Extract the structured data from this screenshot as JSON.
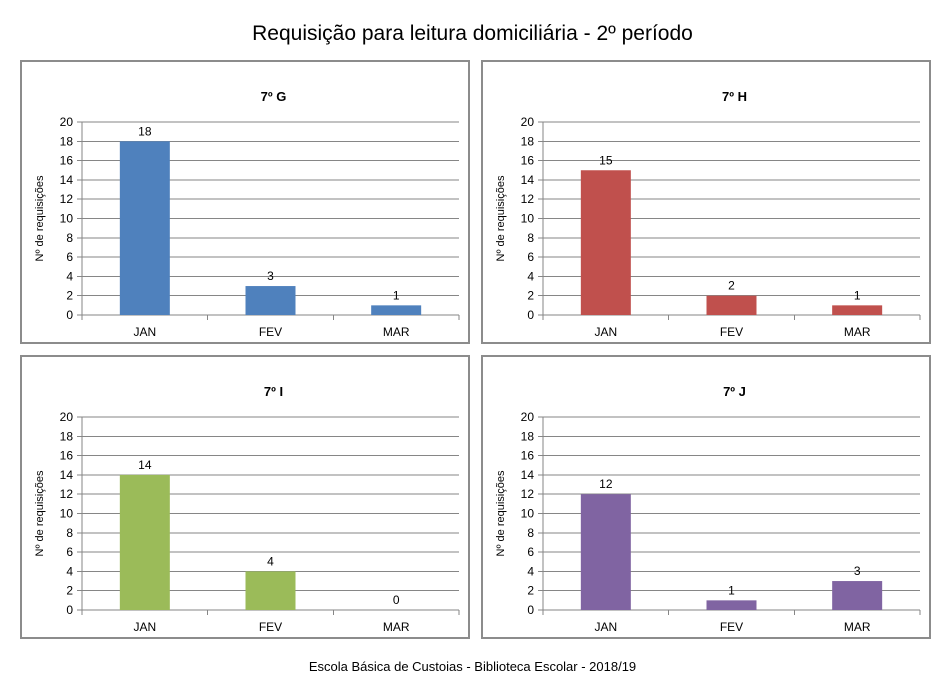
{
  "title": "Requisição para leitura domiciliária - 2º período",
  "footer": "Escola Básica de Custoias - Biblioteca Escolar  - 2018/19",
  "chart_data": [
    {
      "type": "bar",
      "title": "7º G",
      "categories": [
        "JAN",
        "FEV",
        "MAR"
      ],
      "values": [
        18,
        3,
        1
      ],
      "ylabel": "Nº de requisições",
      "xlabel": "",
      "ylim": [
        0,
        20
      ],
      "yticks": [
        0,
        2,
        4,
        6,
        8,
        10,
        12,
        14,
        16,
        18,
        20
      ],
      "color": "#4f81bd",
      "grid": true
    },
    {
      "type": "bar",
      "title": "7º H",
      "categories": [
        "JAN",
        "FEV",
        "MAR"
      ],
      "values": [
        15,
        2,
        1
      ],
      "ylabel": "Nº de requisições",
      "xlabel": "",
      "ylim": [
        0,
        20
      ],
      "yticks": [
        0,
        2,
        4,
        6,
        8,
        10,
        12,
        14,
        16,
        18,
        20
      ],
      "color": "#c0504d",
      "grid": true
    },
    {
      "type": "bar",
      "title": "7º I",
      "categories": [
        "JAN",
        "FEV",
        "MAR"
      ],
      "values": [
        14,
        4,
        0
      ],
      "ylabel": "Nº de requisições",
      "xlabel": "",
      "ylim": [
        0,
        20
      ],
      "yticks": [
        0,
        2,
        4,
        6,
        8,
        10,
        12,
        14,
        16,
        18,
        20
      ],
      "color": "#9bbb59",
      "grid": true
    },
    {
      "type": "bar",
      "title": "7º J",
      "categories": [
        "JAN",
        "FEV",
        "MAR"
      ],
      "values": [
        12,
        1,
        3
      ],
      "ylabel": "Nº de requisições",
      "xlabel": "",
      "ylim": [
        0,
        20
      ],
      "yticks": [
        0,
        2,
        4,
        6,
        8,
        10,
        12,
        14,
        16,
        18,
        20
      ],
      "color": "#8064a2",
      "grid": true
    }
  ]
}
